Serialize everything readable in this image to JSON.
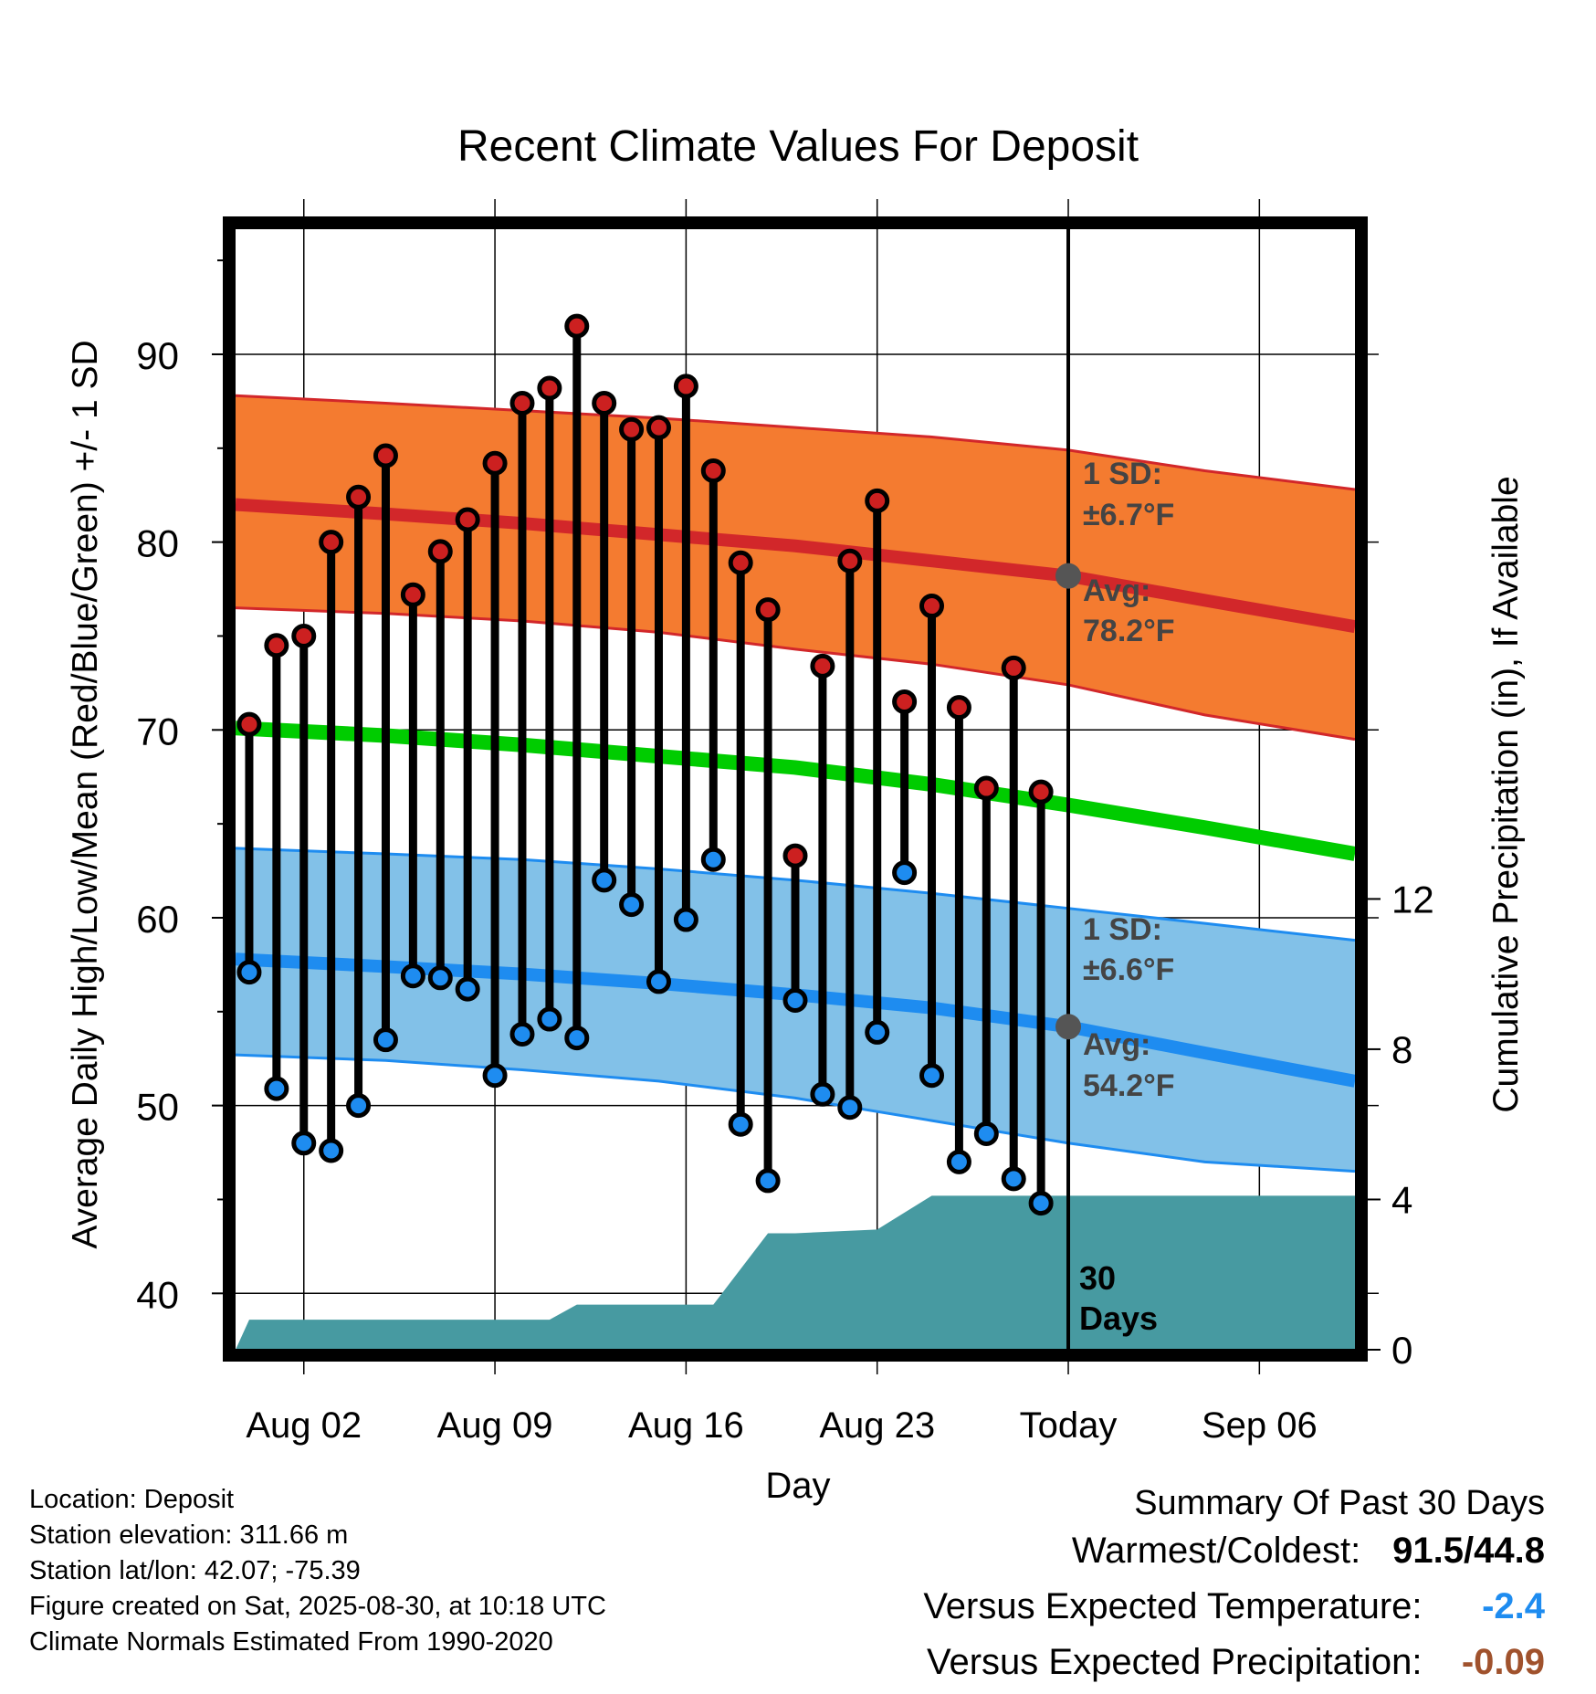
{
  "chart_data": {
    "type": "line",
    "title": "Recent Climate Values For Deposit",
    "xlabel": "Day",
    "ylabel": "Average Daily High/Low/Mean (Red/Blue/Green) +/- 1 SD",
    "y2label": "Cumulative Precipitation (in), If Available",
    "x_tick_labels": [
      "Aug 02",
      "Aug 09",
      "Aug 16",
      "Aug 23",
      "Today",
      "Sep 06"
    ],
    "x_tick_days": [
      2,
      9,
      16,
      23,
      30,
      37
    ],
    "xlim": [
      -0.5,
      40.5
    ],
    "ylim": [
      37,
      97
    ],
    "y_ticks": [
      40,
      50,
      60,
      70,
      80,
      90
    ],
    "y2lim": [
      0,
      30
    ],
    "y2_ticks": [
      0,
      4,
      8,
      12
    ],
    "grid": true,
    "today_day": 30,
    "days_label_number": "30",
    "days_label_word": "Days",
    "daily_observations": {
      "day": [
        0,
        1,
        2,
        3,
        4,
        5,
        6,
        7,
        8,
        9,
        10,
        11,
        12,
        13,
        14,
        15,
        16,
        17,
        18,
        19,
        20,
        21,
        22,
        23,
        24,
        25,
        26,
        27,
        28,
        29
      ],
      "high": [
        70.3,
        74.5,
        75.0,
        80.0,
        82.4,
        84.6,
        77.2,
        79.5,
        81.2,
        84.2,
        87.4,
        88.2,
        91.5,
        87.4,
        86.0,
        86.1,
        88.3,
        83.8,
        78.9,
        76.4,
        63.3,
        73.4,
        79.0,
        82.2,
        71.5,
        76.6,
        71.2,
        66.9,
        73.3,
        66.7
      ],
      "low": [
        57.1,
        50.9,
        48.0,
        47.6,
        50.0,
        53.5,
        56.9,
        56.8,
        56.2,
        51.6,
        53.8,
        54.6,
        53.6,
        62.0,
        60.7,
        56.6,
        59.9,
        63.1,
        49.0,
        46.0,
        55.6,
        50.6,
        49.9,
        53.9,
        62.4,
        51.6,
        47.0,
        48.5,
        46.1,
        44.8
      ]
    },
    "normals": {
      "day": [
        -0.5,
        5,
        10,
        15,
        20,
        25,
        30,
        35,
        40.5
      ],
      "high_avg": [
        82.0,
        81.5,
        81.0,
        80.4,
        79.8,
        79.0,
        78.2,
        76.9,
        75.5
      ],
      "high_upper": [
        87.8,
        87.4,
        87.0,
        86.6,
        86.1,
        85.6,
        84.9,
        83.8,
        82.8
      ],
      "high_lower": [
        76.5,
        76.2,
        75.8,
        75.2,
        74.3,
        73.5,
        72.4,
        70.8,
        69.5
      ],
      "mean_avg": [
        70.1,
        69.7,
        69.2,
        68.6,
        68.0,
        67.1,
        66.0,
        64.8,
        63.4
      ],
      "low_avg": [
        57.8,
        57.4,
        57.0,
        56.5,
        55.9,
        55.2,
        54.2,
        52.8,
        51.3
      ],
      "low_upper": [
        63.7,
        63.4,
        63.1,
        62.6,
        62.0,
        61.3,
        60.5,
        59.7,
        58.8
      ],
      "low_lower": [
        52.7,
        52.4,
        51.9,
        51.3,
        50.4,
        49.2,
        48.0,
        47.0,
        46.5
      ]
    },
    "precipitation_cumulative": {
      "day": [
        -0.5,
        0,
        11,
        12,
        17,
        19,
        20,
        23,
        25,
        40.5
      ],
      "value": [
        0,
        0.8,
        0.8,
        1.2,
        1.2,
        3.1,
        3.1,
        3.2,
        4.1,
        4.1
      ]
    },
    "annotations": {
      "high_sd_title": "1 SD:",
      "high_sd_value": "±6.7°F",
      "high_avg_title": "Avg:",
      "high_avg_value": "78.2°F",
      "low_sd_title": "1 SD:",
      "low_sd_value": "±6.6°F",
      "low_avg_title": "Avg:",
      "low_avg_value": "54.2°F"
    },
    "colors": {
      "high_band": "#f47b30",
      "high_line": "#d2272a",
      "mean_line": "#00cc00",
      "low_band": "#82c1e8",
      "low_line": "#1e8cf0",
      "precip": "#479aa1",
      "high_marker": "#cc2020",
      "low_marker": "#1e8cf0",
      "today_marker": "#555555",
      "annotation_text": "#444444"
    }
  },
  "footer": {
    "location": "Location: Deposit",
    "elevation": "Station elevation: 311.66 m",
    "latlon": "Station lat/lon: 42.07; -75.39",
    "created": "Figure created on Sat, 2025-08-30, at 10:18 UTC",
    "normals": "Climate Normals Estimated From 1990-2020"
  },
  "summary": {
    "title": "Summary Of Past 30 Days",
    "warm_cold_label": "Warmest/Coldest:",
    "warmest": "91.5",
    "separator": "/",
    "coldest": "44.8",
    "temp_label": "Versus Expected Temperature:",
    "temp_value": "-2.4",
    "temp_color": "#1e8cf0",
    "precip_label": "Versus Expected Precipitation:",
    "precip_value": "-0.09",
    "precip_color": "#a0522d"
  }
}
